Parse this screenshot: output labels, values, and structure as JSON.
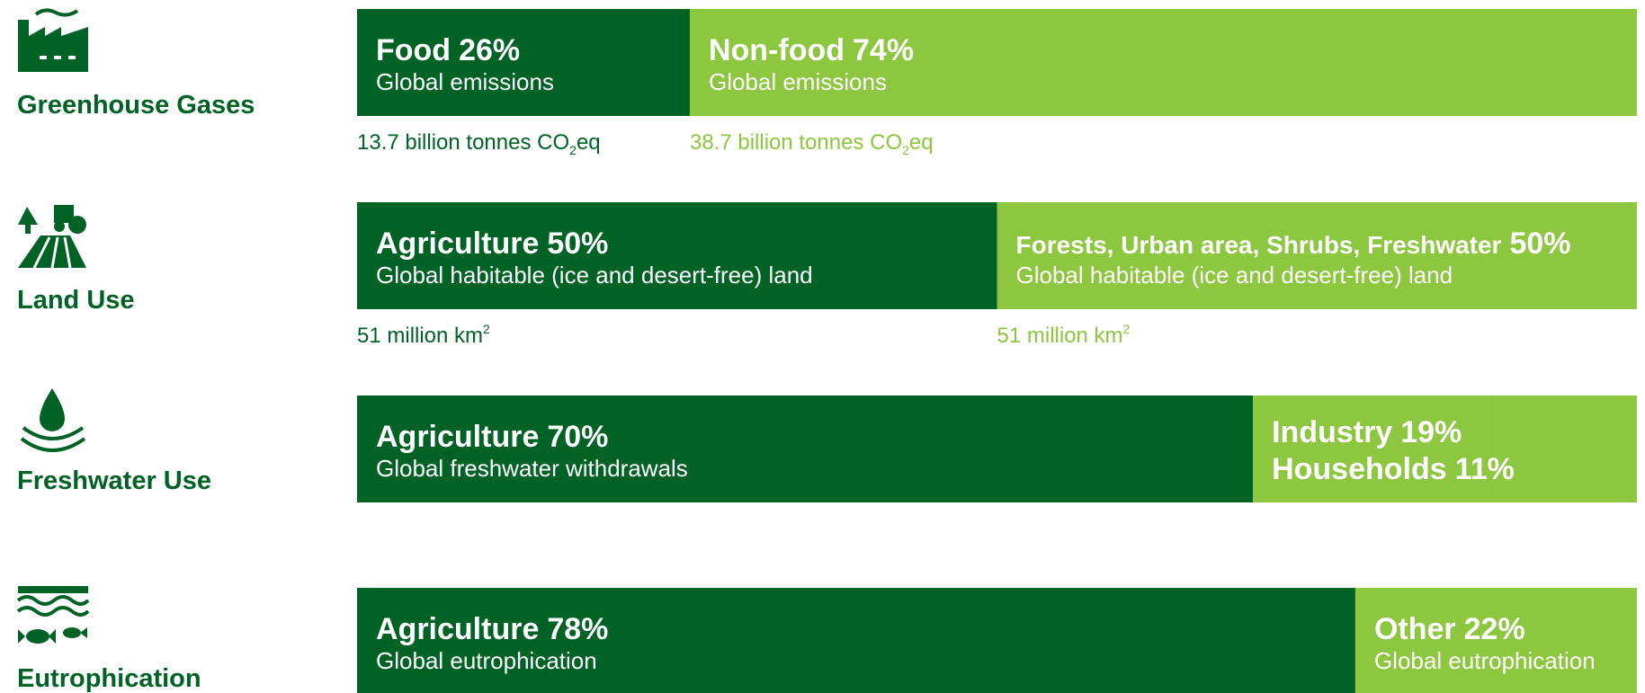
{
  "chart_data": {
    "type": "stacked-bar-horizontal",
    "xlim": [
      0,
      100
    ],
    "colors": [
      "#006225",
      "#8dc63f"
    ],
    "rows": [
      {
        "label": "Greenhouse Gases",
        "segments": [
          {
            "parts": [
              {
                "name": "Food",
                "value": 26,
                "value_label": "26%"
              }
            ],
            "subtitle": "Global emissions",
            "note": {
              "text": "13.7 billion tonnes CO",
              "sub": "2",
              "tail": "eq"
            }
          },
          {
            "parts": [
              {
                "name": "Non-food",
                "value": 74,
                "value_label": "74%"
              }
            ],
            "subtitle": "Global emissions",
            "note": {
              "text": "38.7 billion tonnes CO",
              "sub": "2",
              "tail": "eq"
            }
          }
        ]
      },
      {
        "label": "Land Use",
        "segments": [
          {
            "parts": [
              {
                "name": "Agriculture",
                "value": 50,
                "value_label": "50%"
              }
            ],
            "subtitle": "Global habitable (ice and desert-free) land",
            "note": {
              "text": "51 million km",
              "sup": "2"
            }
          },
          {
            "parts": [
              {
                "name": "Forests, Urban area, Shrubs, Freshwater",
                "value": 50,
                "value_label": "50%"
              }
            ],
            "subtitle": "Global habitable (ice and desert-free) land",
            "note": {
              "text": "51 million km",
              "sup": "2"
            }
          }
        ]
      },
      {
        "label": "Freshwater Use",
        "segments": [
          {
            "parts": [
              {
                "name": "Agriculture",
                "value": 70,
                "value_label": "70%"
              }
            ],
            "subtitle": "Global freshwater withdrawals"
          },
          {
            "parts": [
              {
                "name": "Industry",
                "value": 19,
                "value_label": "19%"
              },
              {
                "name": "Households",
                "value": 11,
                "value_label": "11%"
              }
            ]
          }
        ]
      },
      {
        "label": "Eutrophication",
        "segments": [
          {
            "parts": [
              {
                "name": "Agriculture",
                "value": 78,
                "value_label": "78%"
              }
            ],
            "subtitle": "Global eutrophication"
          },
          {
            "parts": [
              {
                "name": "Other",
                "value": 22,
                "value_label": "22%"
              }
            ],
            "subtitle": "Global eutrophication"
          }
        ]
      }
    ]
  }
}
